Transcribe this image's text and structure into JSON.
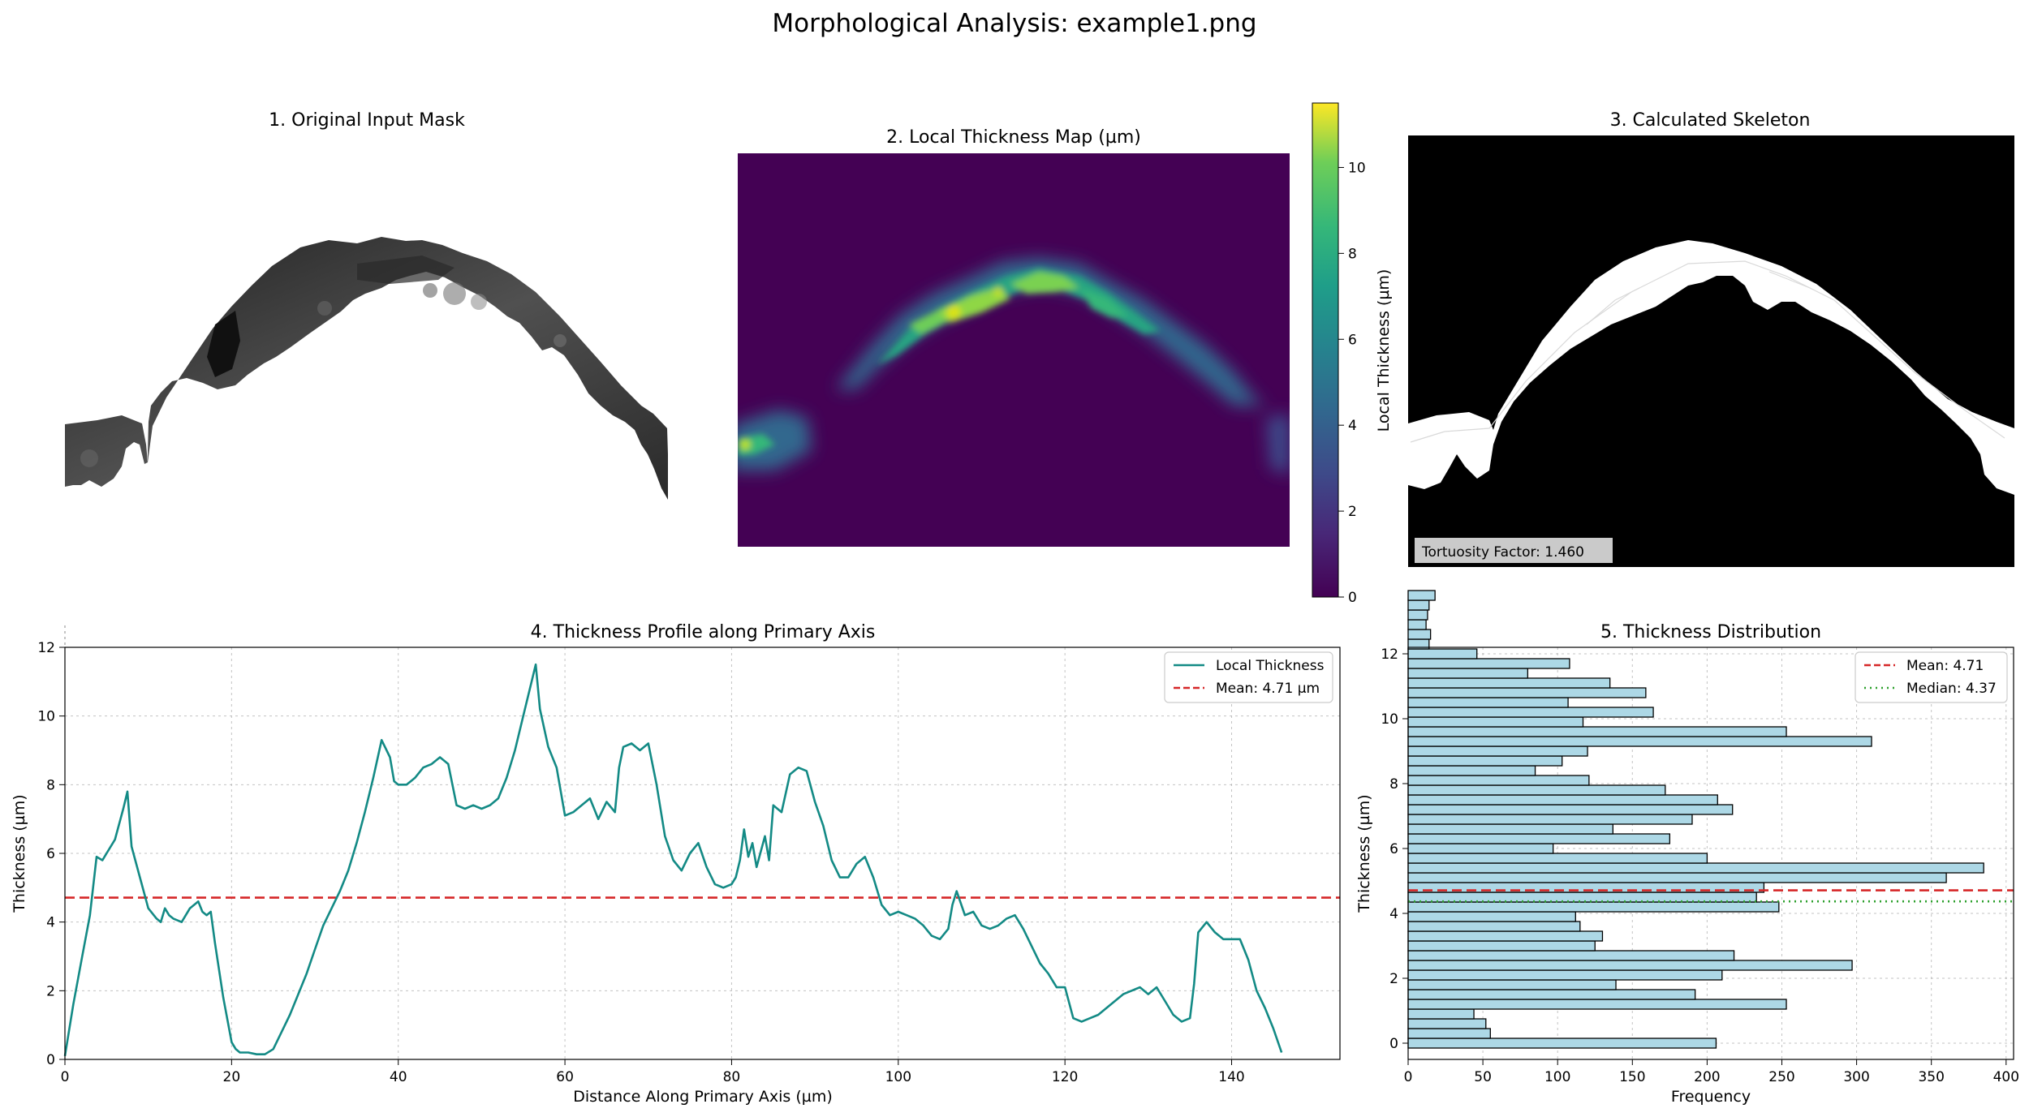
{
  "suptitle": "Morphological Analysis: example1.png",
  "panels": {
    "p1_title": "1. Original Input Mask",
    "p2_title": "2. Local Thickness Map (µm)",
    "p2_colorbar_label": "Local Thickness (µm)",
    "p3_title": "3. Calculated Skeleton",
    "p3_tortuosity": "Tortuosity Factor: 1.460"
  },
  "colors": {
    "line": "#138a85",
    "mean": "#d62728",
    "median": "#2ca02c",
    "bar_fill": "#add8e6",
    "bar_edge": "#000000"
  },
  "chart_data": [
    {
      "type": "heatmap",
      "title": "2. Local Thickness Map (µm)",
      "colormap": "viridis",
      "colorbar_label": "Local Thickness (µm)",
      "clim": [
        0,
        11.5
      ],
      "colorbar_ticks": [
        0,
        2,
        4,
        6,
        8,
        10
      ]
    },
    {
      "type": "line",
      "title": "4. Thickness Profile along Primary Axis",
      "xlabel": "Distance Along Primary Axis (µm)",
      "ylabel": "Thickness (µm)",
      "xlim": [
        0,
        153
      ],
      "ylim": [
        0,
        12
      ],
      "xticks": [
        0,
        20,
        40,
        60,
        80,
        100,
        120,
        140
      ],
      "yticks": [
        0,
        2,
        4,
        6,
        8,
        10,
        12
      ],
      "grid": true,
      "legend_position": "top-right",
      "series": [
        {
          "name": "Local Thickness",
          "x": [
            0,
            1,
            2,
            3,
            3.8,
            4.5,
            5,
            6,
            7,
            7.5,
            8,
            9,
            10,
            11,
            11.5,
            12,
            12.5,
            13,
            14,
            14.5,
            15,
            16,
            16.5,
            17,
            17.5,
            18,
            19,
            20,
            20.5,
            21,
            22,
            23,
            24,
            25,
            26,
            27,
            28,
            29,
            30,
            31,
            32,
            33,
            34,
            35,
            36,
            37,
            38,
            39,
            39.5,
            40,
            41,
            42,
            43,
            44,
            45,
            46,
            47,
            48,
            49,
            50,
            51,
            52,
            53,
            54,
            55,
            56,
            56.5,
            57,
            58,
            59,
            60,
            61,
            62,
            63,
            64,
            65,
            66,
            66.5,
            67,
            68,
            69,
            70,
            71,
            72,
            73,
            74,
            75,
            76,
            77,
            78,
            79,
            80,
            80.5,
            81,
            81.5,
            82,
            82.5,
            83,
            84,
            84.5,
            85,
            86,
            87,
            88,
            89,
            90,
            91,
            92,
            93,
            94,
            95,
            96,
            97,
            98,
            99,
            100,
            101,
            102,
            103,
            104,
            105,
            106,
            106.5,
            107,
            108,
            109,
            110,
            111,
            112,
            113,
            114,
            115,
            116,
            117,
            118,
            119,
            120,
            121,
            122,
            123,
            124,
            125,
            126,
            127,
            128,
            129,
            130,
            131,
            132,
            133,
            134,
            135,
            135.5,
            136,
            137,
            138,
            139,
            140,
            141,
            142,
            143,
            144,
            145,
            146
          ],
          "y": [
            0.1,
            1.6,
            2.9,
            4.2,
            5.9,
            5.8,
            6.0,
            6.4,
            7.3,
            7.8,
            6.2,
            5.3,
            4.4,
            4.1,
            4.0,
            4.4,
            4.2,
            4.1,
            4.0,
            4.2,
            4.4,
            4.6,
            4.3,
            4.2,
            4.3,
            3.4,
            1.8,
            0.5,
            0.3,
            0.2,
            0.2,
            0.15,
            0.15,
            0.3,
            0.8,
            1.3,
            1.9,
            2.5,
            3.2,
            3.9,
            4.4,
            4.9,
            5.5,
            6.3,
            7.2,
            8.2,
            9.3,
            8.8,
            8.1,
            8.0,
            8.0,
            8.2,
            8.5,
            8.6,
            8.8,
            8.6,
            7.4,
            7.3,
            7.4,
            7.3,
            7.4,
            7.6,
            8.2,
            9.0,
            10.0,
            11.0,
            11.5,
            10.2,
            9.1,
            8.5,
            7.1,
            7.2,
            7.4,
            7.6,
            7.0,
            7.5,
            7.2,
            8.5,
            9.1,
            9.2,
            9.0,
            9.2,
            8.0,
            6.5,
            5.8,
            5.5,
            6.0,
            6.3,
            5.6,
            5.1,
            5.0,
            5.1,
            5.3,
            5.8,
            6.7,
            5.9,
            6.3,
            5.6,
            6.5,
            5.8,
            7.4,
            7.2,
            8.3,
            8.5,
            8.4,
            7.5,
            6.8,
            5.8,
            5.3,
            5.3,
            5.7,
            5.9,
            5.3,
            4.5,
            4.2,
            4.3,
            4.2,
            4.1,
            3.9,
            3.6,
            3.5,
            3.8,
            4.5,
            4.9,
            4.2,
            4.3,
            3.9,
            3.8,
            3.9,
            4.1,
            4.2,
            3.8,
            3.3,
            2.8,
            2.5,
            2.1,
            2.1,
            1.2,
            1.1,
            1.2,
            1.3,
            1.5,
            1.7,
            1.9,
            2.0,
            2.1,
            1.9,
            2.1,
            1.7,
            1.3,
            1.1,
            1.2,
            2.2,
            3.7,
            4.0,
            3.7,
            3.5,
            3.5,
            3.5,
            2.9,
            2.0,
            1.5,
            0.9,
            0.2
          ]
        }
      ],
      "reference_lines": [
        {
          "name": "Mean: 4.71 µm",
          "value": 4.71,
          "orientation": "horizontal",
          "style": "dashed"
        }
      ]
    },
    {
      "type": "bar",
      "orientation": "horizontal",
      "title": "5. Thickness Distribution",
      "xlabel": "Frequency",
      "ylabel": "Thickness (µm)",
      "xlim": [
        0,
        405
      ],
      "ylim": [
        -0.5,
        12.2
      ],
      "xticks": [
        0,
        50,
        100,
        150,
        200,
        250,
        300,
        350,
        400
      ],
      "yticks": [
        0,
        2,
        4,
        6,
        8,
        10,
        12
      ],
      "grid": true,
      "legend_position": "top-right",
      "bin_width": 0.3,
      "bin_start": -0.15,
      "frequencies": [
        206,
        55,
        52,
        44,
        253,
        192,
        139,
        210,
        297,
        218,
        125,
        130,
        115,
        112,
        248,
        233,
        238,
        360,
        385,
        200,
        97,
        175,
        137,
        190,
        217,
        207,
        172,
        121,
        85,
        103,
        120,
        310,
        253,
        117,
        164,
        107,
        159,
        135,
        80,
        108,
        46,
        14,
        15,
        12,
        13,
        14,
        18
      ],
      "reference_lines": [
        {
          "name": "Mean: 4.71",
          "value": 4.71,
          "orientation": "horizontal",
          "style": "dashed"
        },
        {
          "name": "Median: 4.37",
          "value": 4.37,
          "orientation": "horizontal",
          "style": "dotted"
        }
      ]
    }
  ]
}
